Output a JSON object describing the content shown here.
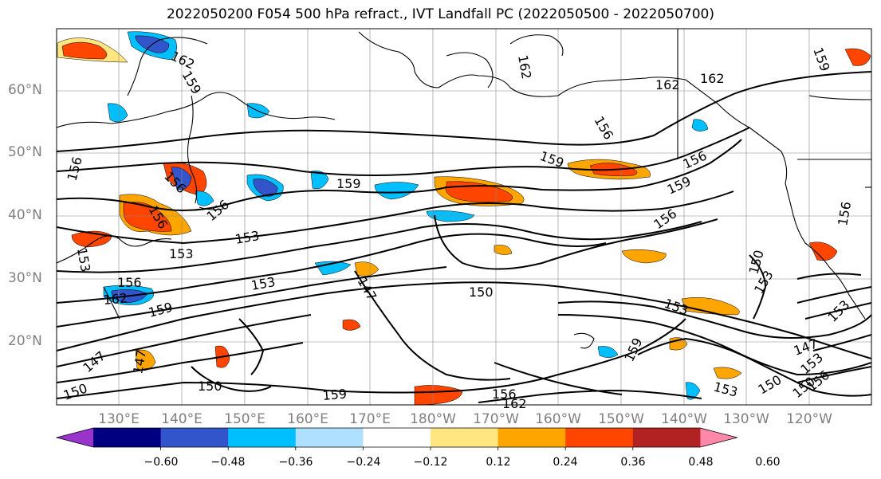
{
  "title": "2022050200 F054 500 hPa refract., IVT Landfall PC (2022050500 - 2022050700)",
  "lat_labels": [
    "60°N",
    "50°N",
    "40°N",
    "30°N",
    "20°N"
  ],
  "lon_labels": [
    "130°E",
    "140°E",
    "150°E",
    "160°E",
    "170°E",
    "180°W",
    "170°W",
    "160°W",
    "150°W",
    "140°W",
    "130°W",
    "120°W"
  ],
  "colorbar": {
    "colors": [
      "#9933cc",
      "#000080",
      "#3355cc",
      "#00bfff",
      "#b0e0ff",
      "#ffffff",
      "#ffe680",
      "#ffa500",
      "#ff4500",
      "#b22222",
      "#ff88aa"
    ],
    "ticks": [
      "−0.60",
      "−0.48",
      "−0.36",
      "−0.24",
      "−0.12",
      "0.12",
      "0.24",
      "0.36",
      "0.48",
      "0.60"
    ]
  },
  "contour_labels": [
    "162",
    "159",
    "162",
    "162",
    "162",
    "159",
    "156",
    "159",
    "159",
    "156",
    "156",
    "159",
    "153",
    "156",
    "156",
    "156",
    "156",
    "153",
    "150",
    "156",
    "162",
    "153",
    "153",
    "147",
    "150",
    "150",
    "153",
    "147",
    "153",
    "150",
    "159",
    "159",
    "147",
    "147",
    "150",
    "153",
    "156",
    "162",
    "159",
    "153",
    "150",
    "156",
    "156",
    "153"
  ]
}
